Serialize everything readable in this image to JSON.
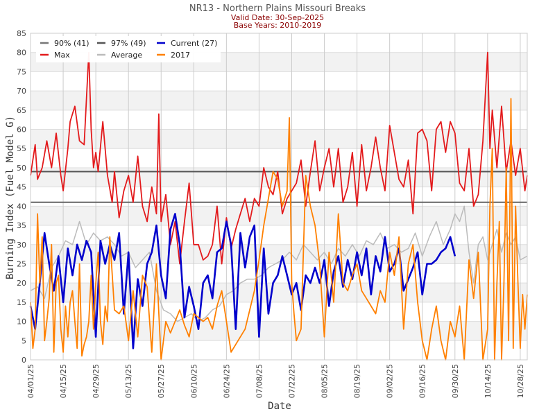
{
  "chart_data": {
    "type": "line",
    "title": "NR13 - Northern Plains Missouri Breaks",
    "subtitle_lines": [
      "Valid Date: 30-Sep-2025",
      "Base Years: 2010-2019"
    ],
    "xlabel": "Date",
    "ylabel": "Burning Index (Fuel Model G)",
    "ylim": [
      0,
      85
    ],
    "yticks": [
      0,
      5,
      10,
      15,
      20,
      25,
      30,
      35,
      40,
      45,
      50,
      55,
      60,
      65,
      70,
      75,
      80,
      85
    ],
    "xlim_days": [
      0,
      213
    ],
    "xticks": [
      {
        "day": 0,
        "label": "04/01/25"
      },
      {
        "day": 14,
        "label": "04/15/25"
      },
      {
        "day": 28,
        "label": "04/29/25"
      },
      {
        "day": 42,
        "label": "05/13/25"
      },
      {
        "day": 56,
        "label": "05/27/25"
      },
      {
        "day": 70,
        "label": "06/10/25"
      },
      {
        "day": 84,
        "label": "06/24/25"
      },
      {
        "day": 98,
        "label": "07/08/25"
      },
      {
        "day": 112,
        "label": "07/22/25"
      },
      {
        "day": 126,
        "label": "08/05/25"
      },
      {
        "day": 140,
        "label": "08/19/25"
      },
      {
        "day": 154,
        "label": "09/02/25"
      },
      {
        "day": 168,
        "label": "09/16/25"
      },
      {
        "day": 182,
        "label": "09/30/25"
      },
      {
        "day": 196,
        "label": "10/14/25"
      },
      {
        "day": 210,
        "label": "10/28/25"
      }
    ],
    "grid": true,
    "legend_position": "top-left",
    "hlines": [
      {
        "name": "90% (41)",
        "value": 41,
        "color": "#666666"
      },
      {
        "name": "97% (49)",
        "value": 49,
        "color": "#555555"
      }
    ],
    "series": [
      {
        "name": "Max",
        "color": "#e31a1c",
        "x": [
          0,
          2,
          3,
          5,
          7,
          9,
          11,
          13,
          14,
          16,
          17,
          19,
          21,
          23,
          25,
          26,
          27,
          28,
          29,
          31,
          33,
          35,
          36,
          38,
          40,
          42,
          44,
          46,
          48,
          50,
          52,
          54,
          55,
          56,
          58,
          60,
          62,
          64,
          66,
          68,
          70,
          72,
          74,
          76,
          78,
          80,
          82,
          84,
          86,
          88,
          90,
          92,
          94,
          96,
          98,
          100,
          102,
          104,
          106,
          108,
          110,
          112,
          114,
          116,
          118,
          120,
          122,
          124,
          126,
          128,
          130,
          132,
          134,
          136,
          138,
          140,
          142,
          144,
          146,
          148,
          150,
          152,
          154,
          156,
          158,
          160,
          162,
          164,
          166,
          168,
          170,
          172,
          174,
          176,
          178,
          180,
          182,
          184,
          186,
          188,
          190,
          192,
          194,
          196,
          197,
          198,
          200,
          202,
          204,
          206,
          208,
          210,
          212,
          213
        ],
        "y": [
          48,
          56,
          47,
          50,
          57,
          50,
          59,
          48,
          44,
          55,
          62,
          66,
          57,
          56,
          80,
          60,
          50,
          54,
          49,
          62,
          48,
          41,
          49,
          37,
          44,
          48,
          41,
          53,
          40,
          36,
          45,
          38,
          64,
          36,
          43,
          30,
          36,
          25,
          36,
          46,
          30,
          30,
          26,
          27,
          30,
          40,
          25,
          37,
          29,
          34,
          38,
          42,
          36,
          42,
          40,
          50,
          45,
          43,
          49,
          38,
          42,
          44,
          46,
          52,
          40,
          49,
          57,
          44,
          50,
          55,
          45,
          55,
          41,
          45,
          54,
          40,
          56,
          44,
          50,
          58,
          50,
          44,
          61,
          54,
          47,
          45,
          52,
          38,
          59,
          60,
          57,
          44,
          60,
          62,
          54,
          62,
          59,
          46,
          44,
          55,
          40,
          43,
          57,
          80,
          55,
          65,
          50,
          66,
          49,
          57,
          48,
          55,
          44,
          48
        ]
      },
      {
        "name": "Average",
        "color": "#bbbbbb",
        "x": [
          0,
          3,
          6,
          9,
          12,
          15,
          18,
          21,
          24,
          27,
          30,
          33,
          36,
          39,
          42,
          45,
          48,
          51,
          54,
          57,
          60,
          63,
          66,
          69,
          72,
          75,
          78,
          81,
          84,
          87,
          90,
          93,
          96,
          99,
          102,
          105,
          108,
          111,
          114,
          117,
          120,
          123,
          126,
          129,
          132,
          135,
          138,
          141,
          144,
          147,
          150,
          153,
          156,
          159,
          162,
          165,
          168,
          171,
          174,
          177,
          180,
          182,
          184,
          186,
          188,
          190,
          192,
          194,
          196,
          198,
          200,
          202,
          204,
          206,
          208,
          210,
          213
        ],
        "y": [
          18,
          19,
          16,
          24,
          27,
          31,
          30,
          36,
          30,
          33,
          31,
          32,
          30,
          27,
          28,
          24,
          26,
          28,
          18,
          13,
          12,
          10,
          11,
          12,
          10,
          11,
          13,
          14,
          17,
          18,
          20,
          21,
          21,
          22,
          24,
          25,
          26,
          28,
          26,
          30,
          28,
          26,
          28,
          25,
          29,
          27,
          30,
          27,
          31,
          30,
          33,
          29,
          30,
          28,
          29,
          33,
          27,
          32,
          36,
          30,
          34,
          38,
          36,
          40,
          28,
          20,
          30,
          32,
          26,
          30,
          34,
          28,
          33,
          30,
          32,
          26,
          27
        ]
      },
      {
        "name": "Current (27)",
        "color": "#0000cc",
        "x": [
          0,
          2,
          4,
          6,
          8,
          10,
          12,
          14,
          16,
          18,
          20,
          22,
          24,
          26,
          28,
          30,
          32,
          34,
          36,
          38,
          40,
          42,
          44,
          46,
          48,
          50,
          52,
          54,
          56,
          58,
          60,
          62,
          64,
          66,
          68,
          70,
          72,
          74,
          76,
          78,
          80,
          82,
          84,
          86,
          88,
          90,
          92,
          94,
          96,
          98,
          100,
          102,
          104,
          106,
          108,
          110,
          112,
          114,
          116,
          118,
          120,
          122,
          124,
          126,
          128,
          130,
          132,
          134,
          136,
          138,
          140,
          142,
          144,
          146,
          148,
          150,
          152,
          154,
          156,
          158,
          160,
          162,
          164,
          166,
          168,
          170,
          172,
          174,
          176,
          178,
          180,
          182
        ],
        "y": [
          14,
          8,
          20,
          33,
          25,
          18,
          27,
          15,
          29,
          22,
          30,
          26,
          31,
          28,
          6,
          31,
          25,
          30,
          26,
          33,
          12,
          28,
          3,
          21,
          14,
          25,
          28,
          35,
          22,
          16,
          34,
          38,
          30,
          11,
          19,
          14,
          8,
          20,
          22,
          16,
          28,
          29,
          36,
          30,
          8,
          33,
          24,
          32,
          35,
          6,
          29,
          12,
          20,
          22,
          27,
          22,
          17,
          20,
          13,
          22,
          20,
          24,
          20,
          26,
          14,
          23,
          27,
          19,
          26,
          21,
          28,
          22,
          29,
          17,
          27,
          23,
          32,
          23,
          25,
          29,
          18,
          21,
          24,
          28,
          17,
          25,
          25,
          26,
          28,
          29,
          32,
          27
        ]
      },
      {
        "name": "2017",
        "color": "#ff8000",
        "x": [
          0,
          1,
          2,
          3,
          4,
          5,
          6,
          7,
          8,
          9,
          10,
          11,
          12,
          13,
          14,
          15,
          16,
          17,
          18,
          19,
          20,
          21,
          22,
          23,
          24,
          25,
          26,
          27,
          28,
          29,
          30,
          31,
          32,
          33,
          34,
          36,
          38,
          40,
          42,
          44,
          46,
          48,
          50,
          52,
          54,
          56,
          58,
          60,
          62,
          64,
          66,
          68,
          70,
          72,
          74,
          76,
          78,
          80,
          82,
          84,
          86,
          88,
          90,
          92,
          94,
          96,
          98,
          100,
          102,
          104,
          106,
          108,
          110,
          111,
          112,
          113,
          114,
          116,
          118,
          120,
          122,
          124,
          126,
          128,
          130,
          132,
          134,
          136,
          138,
          140,
          142,
          144,
          146,
          148,
          150,
          152,
          154,
          156,
          158,
          160,
          162,
          164,
          166,
          168,
          170,
          172,
          174,
          176,
          178,
          180,
          182,
          184,
          186,
          188,
          190,
          192,
          194,
          196,
          197,
          198,
          199,
          200,
          201,
          202,
          203,
          204,
          205,
          206,
          207,
          208,
          209,
          210,
          211,
          212,
          213
        ],
        "y": [
          15,
          3,
          8,
          38,
          20,
          32,
          5,
          10,
          16,
          30,
          2,
          20,
          22,
          8,
          2,
          14,
          6,
          15,
          18,
          10,
          3,
          25,
          1,
          4,
          6,
          10,
          22,
          8,
          20,
          28,
          10,
          4,
          14,
          10,
          32,
          13,
          12,
          14,
          5,
          18,
          6,
          22,
          19,
          2,
          25,
          0,
          10,
          7,
          10,
          13,
          9,
          6,
          12,
          11,
          10,
          11,
          8,
          14,
          18,
          10,
          2,
          4,
          6,
          8,
          13,
          18,
          26,
          35,
          42,
          49,
          47,
          40,
          44,
          63,
          20,
          12,
          5,
          8,
          48,
          40,
          35,
          25,
          6,
          28,
          15,
          38,
          20,
          18,
          22,
          25,
          18,
          16,
          14,
          12,
          18,
          15,
          28,
          22,
          32,
          8,
          25,
          30,
          15,
          5,
          0,
          8,
          14,
          5,
          0,
          10,
          6,
          14,
          0,
          26,
          16,
          28,
          0,
          8,
          40,
          55,
          0,
          20,
          36,
          0,
          20,
          50,
          5,
          68,
          3,
          40,
          20,
          3,
          17,
          8,
          17
        ]
      }
    ]
  },
  "legend": {
    "items": [
      {
        "label": "90% (41)",
        "color": "#777777"
      },
      {
        "label": "97% (49)",
        "color": "#555555"
      },
      {
        "label": "Current (27)",
        "color": "#0000cc"
      },
      {
        "label": "Max",
        "color": "#e31a1c"
      },
      {
        "label": "Average",
        "color": "#bbbbbb"
      },
      {
        "label": "2017",
        "color": "#ff8000"
      }
    ]
  }
}
